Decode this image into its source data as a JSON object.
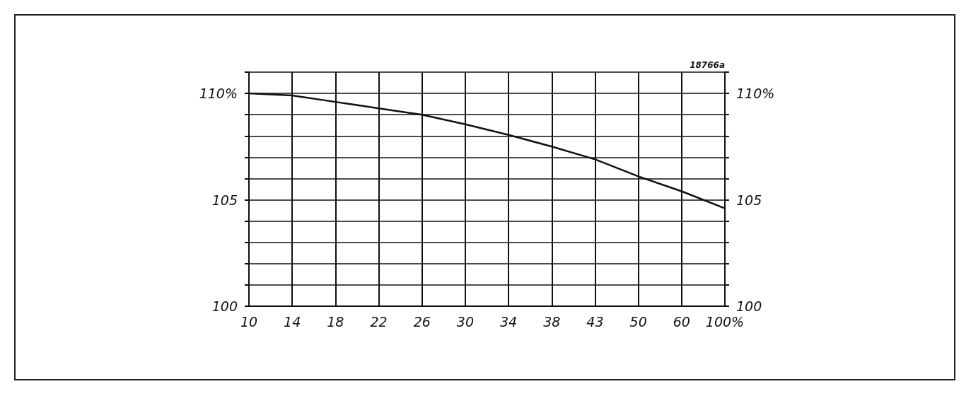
{
  "chart_data": {
    "type": "line",
    "categories": [
      "10",
      "14",
      "18",
      "22",
      "26",
      "30",
      "34",
      "38",
      "43",
      "50",
      "60",
      "100%"
    ],
    "series": [
      {
        "color": "#111111",
        "values": [
          110,
          109.9,
          109.6,
          109.3,
          109.0,
          108.55,
          108.05,
          107.5,
          106.9,
          106.1,
          105.4,
          104.6
        ]
      }
    ],
    "ylim": [
      100,
      111
    ],
    "yticks": [
      {
        "value": 100,
        "label": "100"
      },
      {
        "value": 101,
        "label": null
      },
      {
        "value": 102,
        "label": null
      },
      {
        "value": 103,
        "label": null
      },
      {
        "value": 104,
        "label": null
      },
      {
        "value": 105,
        "label": "105"
      },
      {
        "value": 106,
        "label": null
      },
      {
        "value": 107,
        "label": null
      },
      {
        "value": 108,
        "label": null
      },
      {
        "value": 109,
        "label": null
      },
      {
        "value": 110,
        "label": "110%"
      },
      {
        "value": 111,
        "label": null
      }
    ],
    "y2lim": [
      100,
      111
    ],
    "y2ticks": [
      {
        "value": 100,
        "label": "100"
      },
      {
        "value": 101,
        "label": null
      },
      {
        "value": 102,
        "label": null
      },
      {
        "value": 103,
        "label": null
      },
      {
        "value": 104,
        "label": null
      },
      {
        "value": 105,
        "label": "105"
      },
      {
        "value": 106,
        "label": null
      },
      {
        "value": 107,
        "label": null
      },
      {
        "value": 108,
        "label": null
      },
      {
        "value": 109,
        "label": null
      },
      {
        "value": 110,
        "label": "110%"
      },
      {
        "value": 111,
        "label": null
      }
    ],
    "annotations": [
      "18766a"
    ],
    "grid": true,
    "marker": "none",
    "line_style": "solid"
  }
}
